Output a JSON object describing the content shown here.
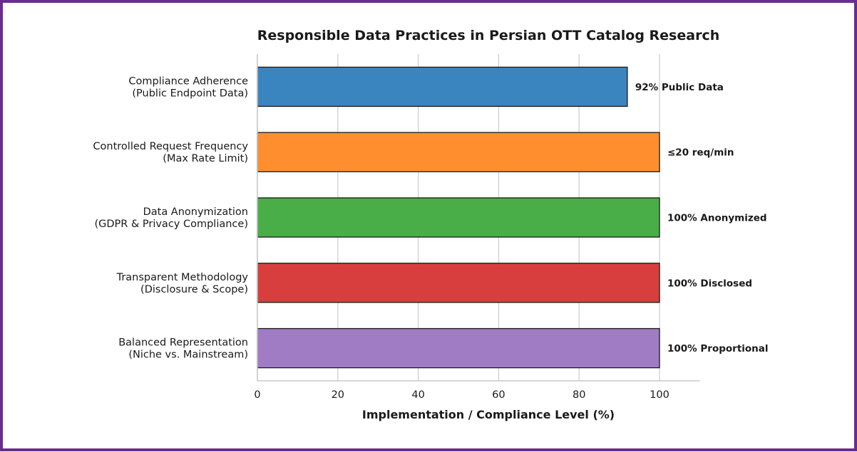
{
  "chart_data": {
    "type": "bar",
    "orientation": "horizontal",
    "title": "Responsible Data Practices in Persian OTT Catalog Research",
    "xlabel": "Implementation / Compliance Level (%)",
    "ylabel": "",
    "xlim": [
      0,
      110
    ],
    "xticks": [
      0,
      20,
      40,
      60,
      80,
      100
    ],
    "grid": "vertical",
    "categories": [
      [
        "Compliance Adherence",
        "(Public Endpoint Data)"
      ],
      [
        "Controlled Request Frequency",
        "(Max Rate Limit)"
      ],
      [
        "Data Anonymization",
        "(GDPR & Privacy Compliance)"
      ],
      [
        "Transparent Methodology",
        "(Disclosure & Scope)"
      ],
      [
        "Balanced Representation",
        "(Niche vs. Mainstream)"
      ]
    ],
    "values": [
      92,
      100,
      100,
      100,
      100
    ],
    "data_labels": [
      "92% Public Data",
      "≤20 req/min",
      "100% Anonymized",
      "100% Disclosed",
      "100% Proportional"
    ],
    "colors": [
      "#3a84c0",
      "#ff8f2e",
      "#49ae47",
      "#d93e3e",
      "#a07cc5"
    ]
  }
}
